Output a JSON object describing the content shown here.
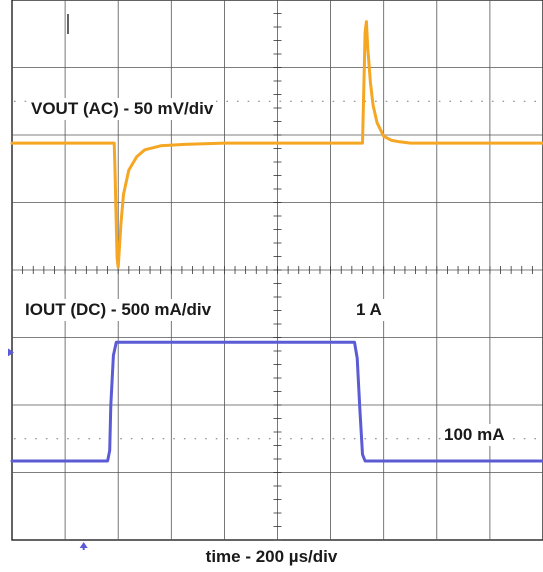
{
  "chart_data": {
    "type": "line",
    "xlabel": "time - 200 µs/div",
    "grid": true,
    "divisions": {
      "x": 10,
      "y": 8
    },
    "series": [
      {
        "name": "VOUT (AC) - 50 mV/div",
        "color": "#f5a623",
        "x_unit": "µs",
        "y_unit": "mV (AC)",
        "x": [
          0,
          385,
          388,
          392,
          396,
          400,
          410,
          420,
          440,
          470,
          500,
          560,
          650,
          800,
          1000,
          1150,
          1320,
          1325,
          1330,
          1335,
          1340,
          1350,
          1360,
          1375,
          1400,
          1430,
          1460,
          1500,
          1600,
          1800,
          2000
        ],
        "y": [
          0,
          0,
          -20,
          -55,
          -85,
          -92,
          -60,
          -38,
          -20,
          -10,
          -5,
          -2,
          -1,
          0,
          0,
          0,
          0,
          40,
          82,
          90,
          70,
          45,
          28,
          15,
          5,
          2,
          1,
          0,
          0,
          0,
          0
        ]
      },
      {
        "name": "IOUT (DC) - 500 mA/div",
        "color": "#5b5bd6",
        "x_unit": "µs",
        "y_unit": "mA",
        "x": [
          0,
          360,
          368,
          372,
          382,
          393,
          400,
          1000,
          1290,
          1300,
          1310,
          1320,
          1330,
          2000
        ],
        "y": [
          100,
          100,
          180,
          520,
          900,
          1000,
          1000,
          1000,
          1000,
          880,
          500,
          150,
          100,
          100
        ]
      }
    ],
    "annotations": [
      "1 A",
      "100 mA"
    ]
  }
}
